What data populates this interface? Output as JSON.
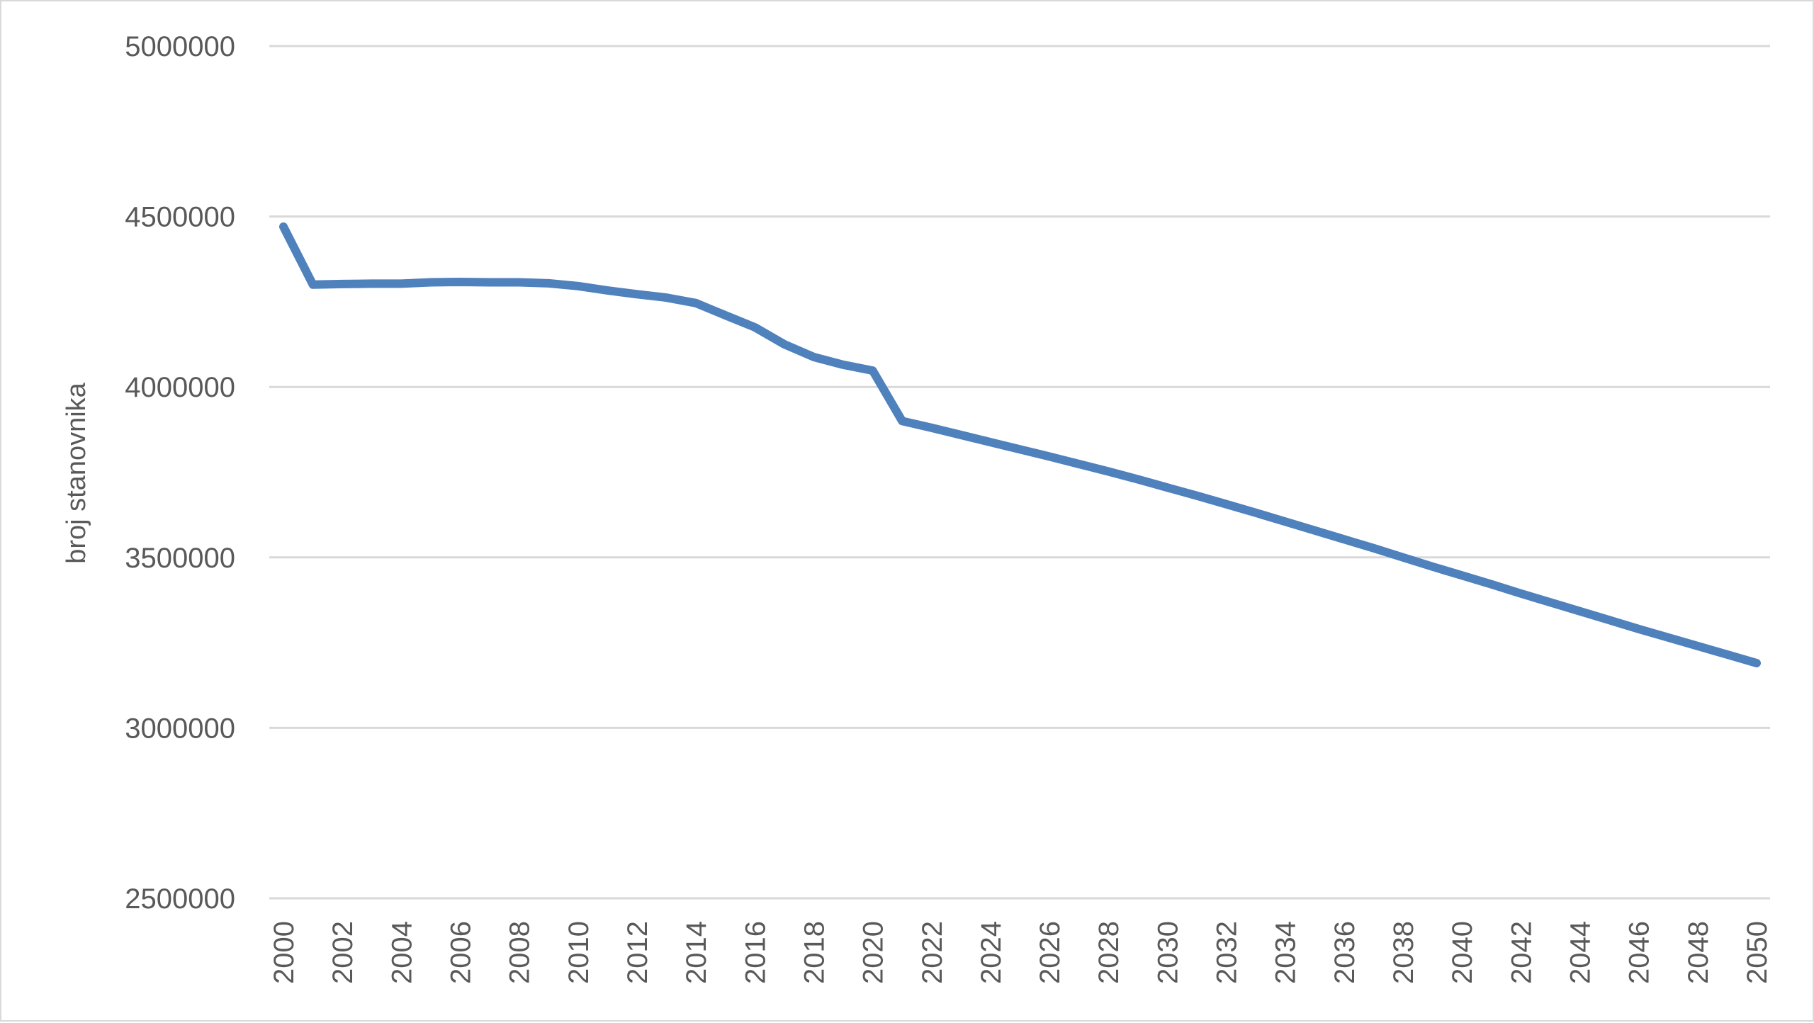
{
  "chart_data": {
    "type": "line",
    "title": "",
    "xlabel": "",
    "ylabel": "broj stanovnika",
    "ylim": [
      2500000,
      5000000
    ],
    "yticks": [
      2500000,
      3000000,
      3500000,
      4000000,
      4500000,
      5000000
    ],
    "xlim": [
      2000,
      2050
    ],
    "xtick_labels": [
      "2000",
      "2002",
      "2004",
      "2006",
      "2008",
      "2010",
      "2012",
      "2014",
      "2016",
      "2018",
      "2020",
      "2022",
      "2024",
      "2026",
      "2028",
      "2030",
      "2032",
      "2034",
      "2036",
      "2038",
      "2040",
      "2042",
      "2044",
      "2046",
      "2048",
      "2050"
    ],
    "grid": true,
    "legend": "none",
    "line_color": "#4f81bd",
    "gridline_color": "#d9d9d9",
    "text_color": "#595959",
    "series": [
      {
        "x": [
          2000,
          2001,
          2002,
          2003,
          2004,
          2005,
          2006,
          2007,
          2008,
          2009,
          2010,
          2011,
          2012,
          2013,
          2014,
          2015,
          2016,
          2017,
          2018,
          2019,
          2020,
          2021,
          2022,
          2023,
          2024,
          2025,
          2026,
          2027,
          2028,
          2029,
          2030,
          2031,
          2032,
          2033,
          2034,
          2035,
          2036,
          2037,
          2038,
          2039,
          2040,
          2041,
          2042,
          2043,
          2044,
          2045,
          2046,
          2047,
          2048,
          2049,
          2050
        ],
        "values": [
          4470000,
          4300000,
          4302000,
          4303000,
          4303000,
          4307000,
          4308000,
          4307000,
          4307000,
          4304000,
          4296000,
          4283000,
          4272000,
          4262000,
          4246000,
          4210000,
          4175000,
          4125000,
          4088000,
          4065000,
          4048000,
          3900000,
          3880000,
          3859000,
          3838000,
          3817000,
          3796000,
          3774000,
          3752000,
          3729000,
          3705000,
          3681000,
          3656000,
          3631000,
          3605000,
          3579000,
          3553000,
          3527000,
          3500000,
          3473000,
          3447000,
          3421000,
          3394000,
          3368000,
          3342000,
          3316000,
          3290000,
          3265000,
          3240000,
          3215000,
          3190000
        ]
      }
    ]
  }
}
